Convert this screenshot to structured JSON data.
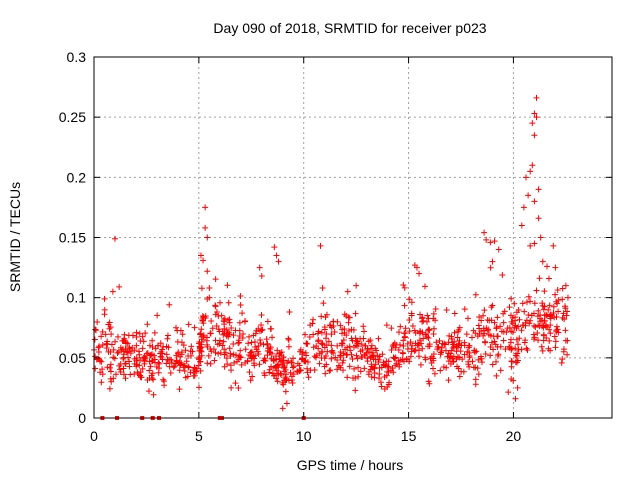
{
  "chart_data": {
    "type": "scatter",
    "title": "Day 090 of 2018, SRMTID for receiver p023",
    "xlabel": "GPS time / hours",
    "ylabel": "SRMTID / TECUs",
    "xlim": [
      0,
      24.7
    ],
    "ylim": [
      0,
      0.3
    ],
    "x_ticks": [
      0,
      5,
      10,
      15,
      20
    ],
    "y_ticks": [
      0,
      0.05,
      0.1,
      0.15,
      0.2,
      0.25,
      0.3
    ],
    "x_tick_labels": [
      "0",
      "5",
      "10",
      "15",
      "20"
    ],
    "y_tick_labels": [
      "0",
      "0.05",
      "0.1",
      "0.15",
      "0.2",
      "0.25",
      "0.3"
    ],
    "grid": true,
    "marker": "+",
    "series_color": "#ff0000",
    "series": [
      {
        "name": "SRMTID",
        "segments": [
          {
            "x0": 0.0,
            "x1": 1.5,
            "base": 0.055,
            "spread": 0.022,
            "n": 75
          },
          {
            "x0": 1.5,
            "x1": 4.5,
            "base": 0.048,
            "spread": 0.018,
            "n": 150
          },
          {
            "x0": 4.5,
            "x1": 5.2,
            "base": 0.05,
            "spread": 0.02,
            "n": 35
          },
          {
            "x0": 5.0,
            "x1": 6.5,
            "base": 0.068,
            "spread": 0.024,
            "n": 80
          },
          {
            "x0": 6.5,
            "x1": 8.5,
            "base": 0.055,
            "spread": 0.02,
            "n": 100
          },
          {
            "x0": 8.5,
            "x1": 10.0,
            "base": 0.04,
            "spread": 0.018,
            "n": 80
          },
          {
            "x0": 10.0,
            "x1": 12.5,
            "base": 0.058,
            "spread": 0.022,
            "n": 125
          },
          {
            "x0": 12.5,
            "x1": 14.5,
            "base": 0.048,
            "spread": 0.018,
            "n": 100
          },
          {
            "x0": 14.5,
            "x1": 16.5,
            "base": 0.065,
            "spread": 0.022,
            "n": 100
          },
          {
            "x0": 16.5,
            "x1": 18.5,
            "base": 0.055,
            "spread": 0.02,
            "n": 100
          },
          {
            "x0": 18.5,
            "x1": 20.5,
            "base": 0.068,
            "spread": 0.026,
            "n": 100
          },
          {
            "x0": 20.5,
            "x1": 22.6,
            "base": 0.078,
            "spread": 0.028,
            "n": 105
          }
        ],
        "peaks": [
          {
            "x": 1.0,
            "y": 0.149
          },
          {
            "x": 1.2,
            "y": 0.109
          },
          {
            "x": 0.9,
            "y": 0.105
          },
          {
            "x": 5.1,
            "y": 0.135
          },
          {
            "x": 5.2,
            "y": 0.131
          },
          {
            "x": 5.3,
            "y": 0.175
          },
          {
            "x": 5.3,
            "y": 0.158
          },
          {
            "x": 5.4,
            "y": 0.15
          },
          {
            "x": 5.4,
            "y": 0.122
          },
          {
            "x": 5.5,
            "y": 0.108
          },
          {
            "x": 5.5,
            "y": 0.1
          },
          {
            "x": 7.9,
            "y": 0.125
          },
          {
            "x": 8.0,
            "y": 0.118
          },
          {
            "x": 8.6,
            "y": 0.142
          },
          {
            "x": 8.7,
            "y": 0.135
          },
          {
            "x": 8.8,
            "y": 0.13
          },
          {
            "x": 9.0,
            "y": 0.008
          },
          {
            "x": 9.2,
            "y": 0.012
          },
          {
            "x": 10.8,
            "y": 0.143
          },
          {
            "x": 10.9,
            "y": 0.108
          },
          {
            "x": 12.1,
            "y": 0.105
          },
          {
            "x": 12.5,
            "y": 0.11
          },
          {
            "x": 15.3,
            "y": 0.127
          },
          {
            "x": 15.4,
            "y": 0.125
          },
          {
            "x": 15.5,
            "y": 0.12
          },
          {
            "x": 18.6,
            "y": 0.154
          },
          {
            "x": 18.7,
            "y": 0.148
          },
          {
            "x": 18.9,
            "y": 0.146
          },
          {
            "x": 19.1,
            "y": 0.147
          },
          {
            "x": 19.3,
            "y": 0.14
          },
          {
            "x": 19.0,
            "y": 0.13
          },
          {
            "x": 20.4,
            "y": 0.16
          },
          {
            "x": 20.5,
            "y": 0.175
          },
          {
            "x": 20.6,
            "y": 0.2
          },
          {
            "x": 20.7,
            "y": 0.185
          },
          {
            "x": 20.8,
            "y": 0.205
          },
          {
            "x": 20.9,
            "y": 0.21
          },
          {
            "x": 20.9,
            "y": 0.245
          },
          {
            "x": 21.0,
            "y": 0.253
          },
          {
            "x": 21.0,
            "y": 0.235
          },
          {
            "x": 21.1,
            "y": 0.266
          },
          {
            "x": 21.1,
            "y": 0.25
          },
          {
            "x": 21.0,
            "y": 0.18
          },
          {
            "x": 21.2,
            "y": 0.19
          },
          {
            "x": 21.2,
            "y": 0.166
          },
          {
            "x": 21.3,
            "y": 0.15
          },
          {
            "x": 20.8,
            "y": 0.143
          },
          {
            "x": 21.0,
            "y": 0.145
          },
          {
            "x": 21.4,
            "y": 0.13
          },
          {
            "x": 21.6,
            "y": 0.126
          },
          {
            "x": 21.9,
            "y": 0.143
          },
          {
            "x": 22.0,
            "y": 0.125
          },
          {
            "x": 22.5,
            "y": 0.11
          },
          {
            "x": 22.6,
            "y": 0.1
          },
          {
            "x": 20.1,
            "y": 0.016
          },
          {
            "x": 20.2,
            "y": 0.025
          }
        ],
        "zeros": [
          0.4,
          1.1,
          2.3,
          2.8,
          3.1,
          6.0,
          6.1,
          10.0
        ]
      }
    ]
  }
}
